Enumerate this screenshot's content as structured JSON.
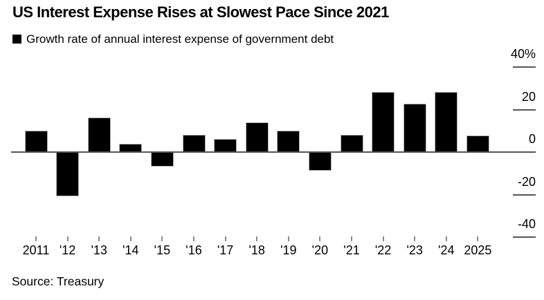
{
  "chart_data": {
    "type": "bar",
    "title": "US Interest Expense Rises at Slowest Pace Since 2021",
    "series_label": "Growth rate of annual interest expense of government debt",
    "source": "Source: Treasury",
    "categories": [
      "2011",
      "'12",
      "'13",
      "'14",
      "'15",
      "'16",
      "'17",
      "'18",
      "'19",
      "'20",
      "'21",
      "'22",
      "'23",
      "'24",
      "2025"
    ],
    "values": [
      10.2,
      -20.9,
      16.1,
      4.0,
      -6.8,
      8.1,
      6.2,
      14.1,
      10.1,
      -8.7,
      8.1,
      28.3,
      22.7,
      28.2,
      7.8
    ],
    "unit": "%",
    "xlabel": "",
    "ylabel": "",
    "y_ticks": [
      40,
      20,
      0,
      -20,
      -40
    ],
    "y_tick_labels": [
      "40%",
      "20",
      "0",
      "-20",
      "-40"
    ],
    "ylim": [
      -48,
      44
    ],
    "grid": false,
    "bar_color": "#000000",
    "axis_color": "#555555",
    "tick_color": "#8a8a8a",
    "text_color": "#000000",
    "legend_position": "top-left"
  }
}
